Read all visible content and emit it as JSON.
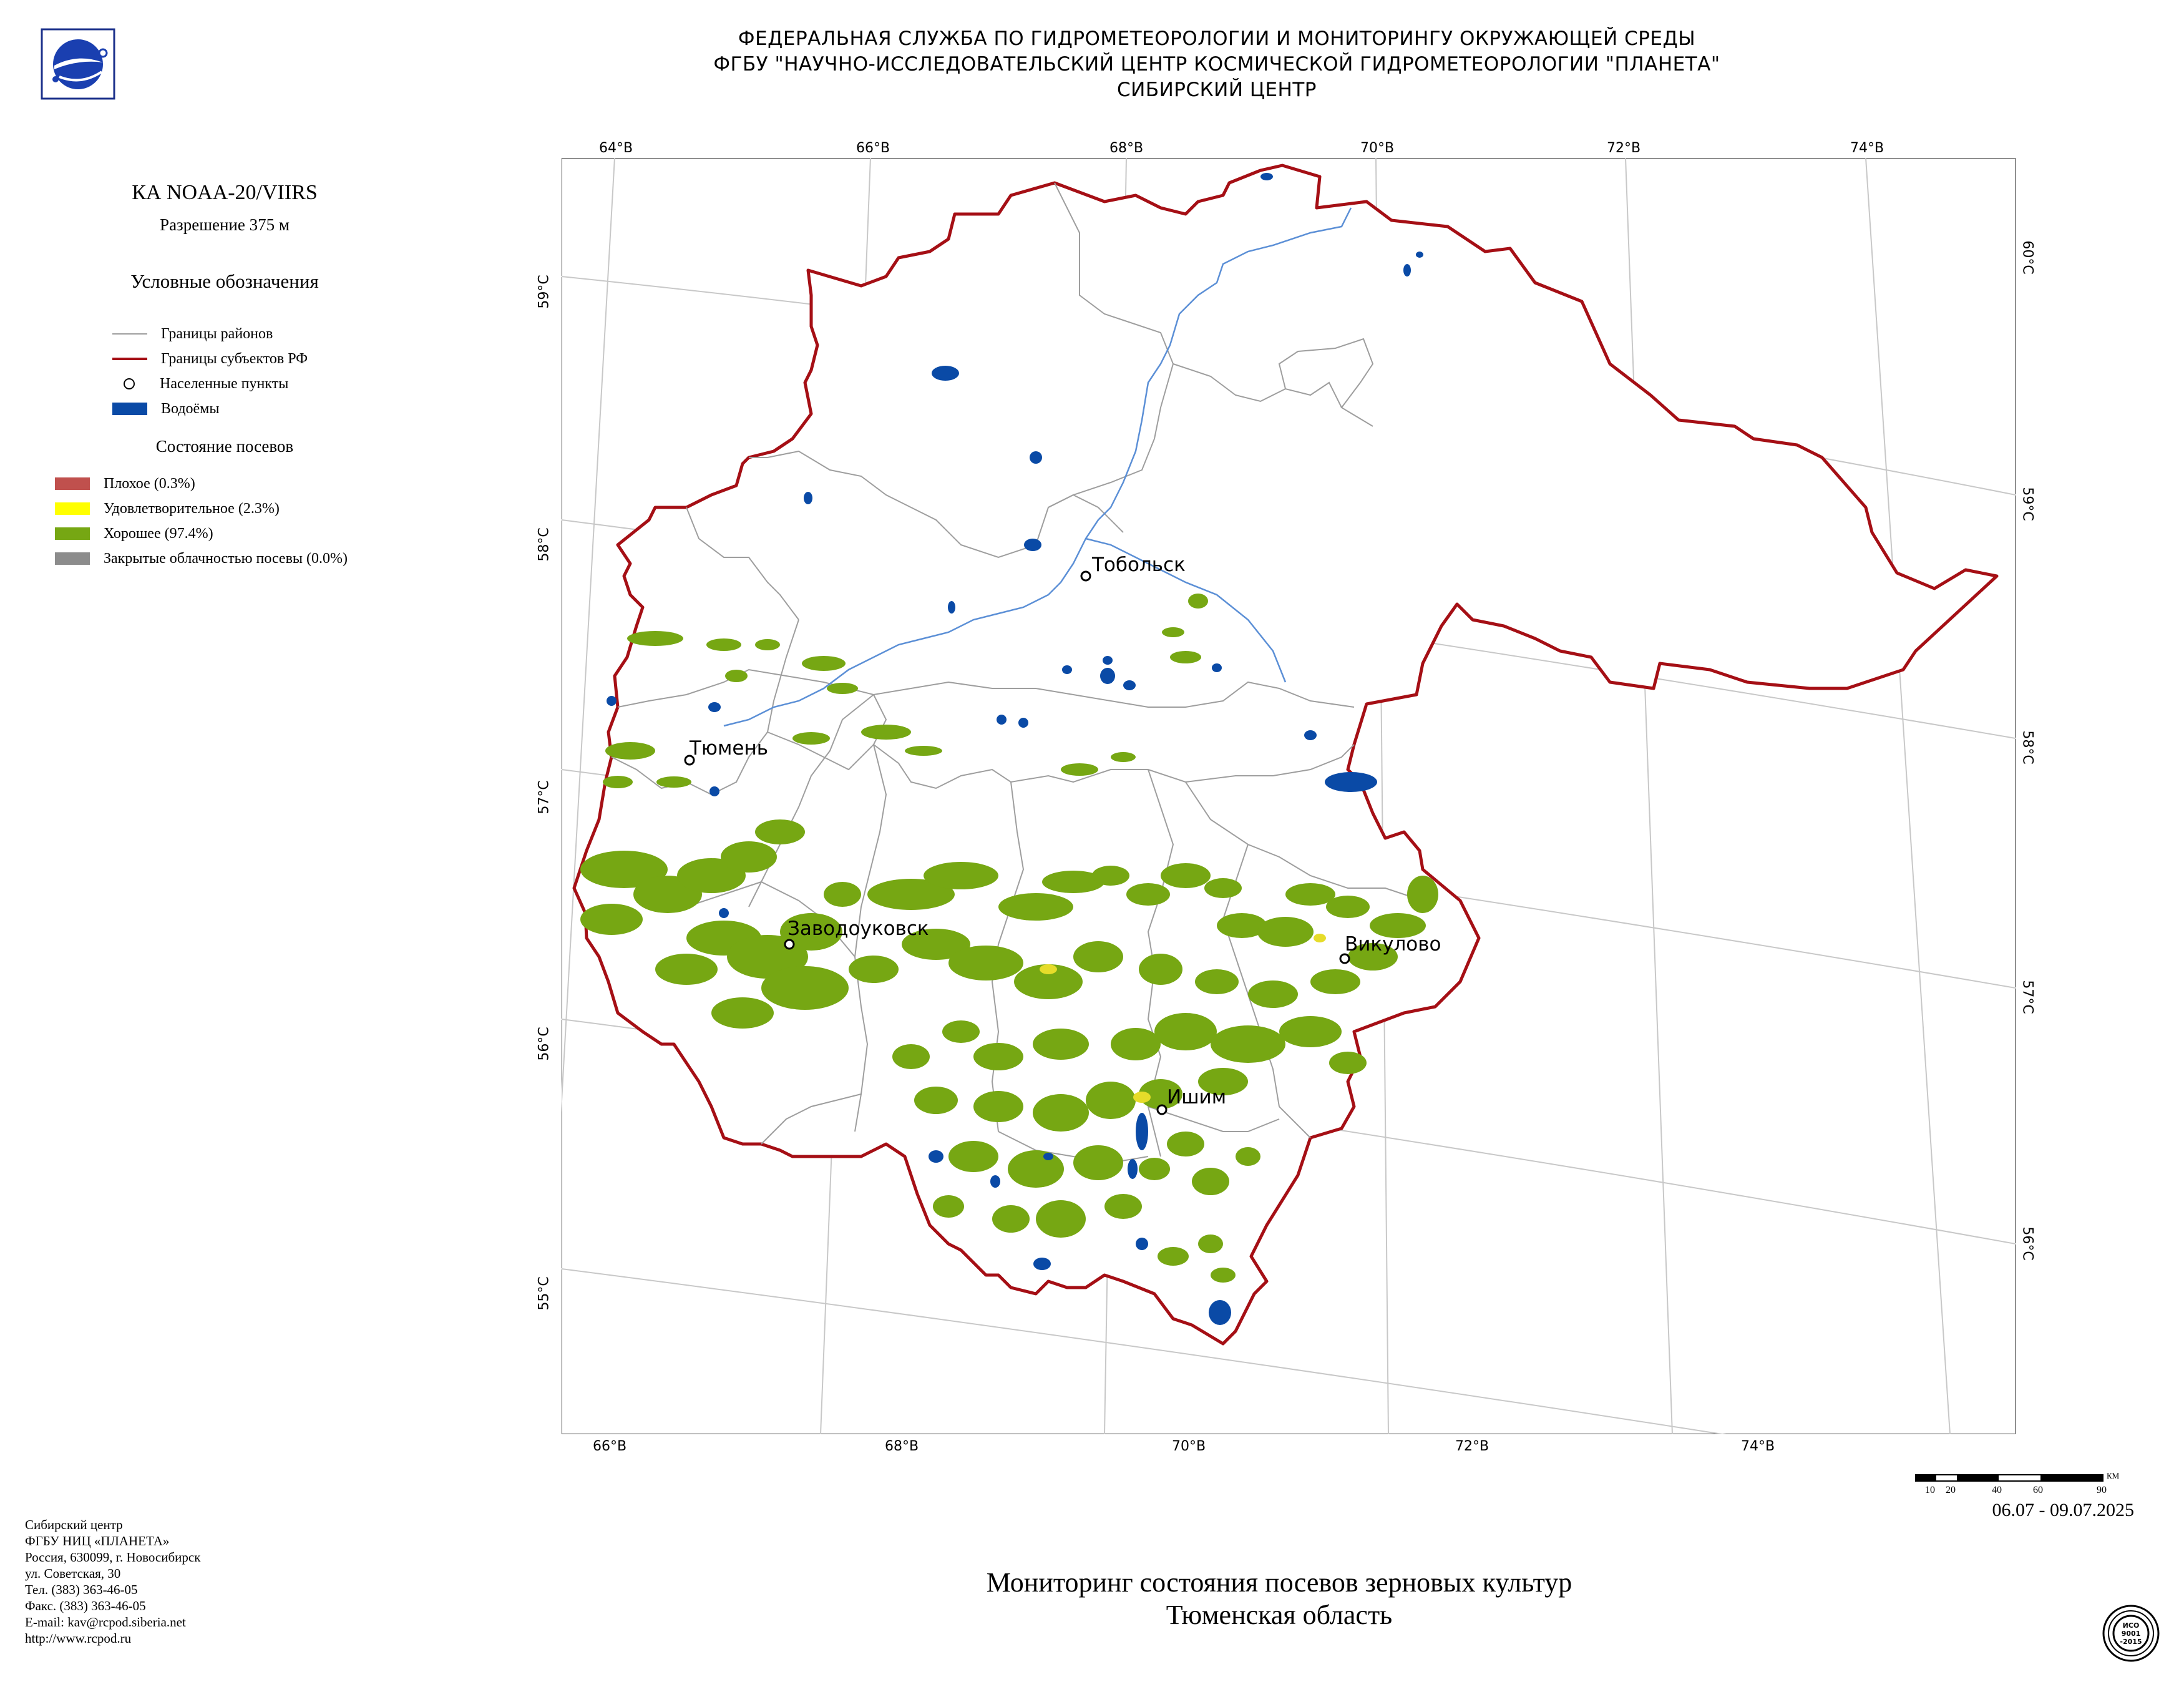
{
  "header": {
    "line1": "ФЕДЕРАЛЬНАЯ СЛУЖБА ПО ГИДРОМЕТЕОРОЛОГИИ И МОНИТОРИНГУ ОКРУЖАЮЩЕЙ СРЕДЫ",
    "line2": "ФГБУ \"НАУЧНО-ИССЛЕДОВАТЕЛЬСКИЙ ЦЕНТР КОСМИЧЕСКОЙ ГИДРОМЕТЕОРОЛОГИИ \"ПЛАНЕТА\"",
    "line3": "СИБИРСКИЙ ЦЕНТР"
  },
  "legend": {
    "satellite": "КА NOAA-20/VIIRS",
    "resolution": "Разрешение 375 м",
    "title": "Условные обозначения",
    "items": [
      {
        "label": "Границы районов",
        "color": "#9e9e9e"
      },
      {
        "label": "Границы субъектов РФ",
        "color": "#a50f15"
      },
      {
        "label": "Населенные пункты",
        "color": "#000000"
      },
      {
        "label": "Водоёмы",
        "color": "#0a4aa6"
      }
    ],
    "crop_title": "Состояние посевов",
    "crop_items": [
      {
        "label": "Плохое (0.3%)",
        "color": "#c0504d"
      },
      {
        "label": "Удовлетворительное (2.3%)",
        "color": "#ffff00"
      },
      {
        "label": "Хорошее (97.4%)",
        "color": "#76a713"
      },
      {
        "label": "Закрытые облачностью посевы (0.0%)",
        "color": "#8c8c8c"
      }
    ]
  },
  "map": {
    "top_lon_labels": [
      "64°В",
      "66°В",
      "68°В",
      "70°В",
      "72°В",
      "74°В"
    ],
    "bottom_lon_labels": [
      "66°В",
      "68°В",
      "70°В",
      "72°В",
      "74°В"
    ],
    "left_lat_labels": [
      "59°С",
      "58°С",
      "57°С",
      "56°С",
      "55°С"
    ],
    "right_lat_labels": [
      "60°С",
      "59°С",
      "58°С",
      "57°С",
      "56°С"
    ],
    "cities": [
      {
        "name": "Тобольск"
      },
      {
        "name": "Тюмень"
      },
      {
        "name": "Заводоуковск"
      },
      {
        "name": "Викулово"
      },
      {
        "name": "Ишим"
      }
    ],
    "scale_labels": [
      "10",
      "20",
      "40",
      "60",
      "90"
    ],
    "scale_unit": "КМ"
  },
  "dates": "06.07 - 09.07.2025",
  "title": {
    "line1": "Мониторинг состояния посевов зерновых культур",
    "line2": "Тюменская область"
  },
  "footer": [
    "Сибирский центр",
    "ФГБУ НИЦ «ПЛАНЕТА»",
    "Россия, 630099, г. Новосибирск",
    "ул. Советская, 30",
    "Тел. (383) 363-46-05",
    "Факс. (383) 363-46-05",
    "E-mail: kav@rcpod.siberia.net",
    "http://www.rcpod.ru"
  ],
  "iso_text": [
    "ИСО",
    "9001",
    "-2015"
  ]
}
